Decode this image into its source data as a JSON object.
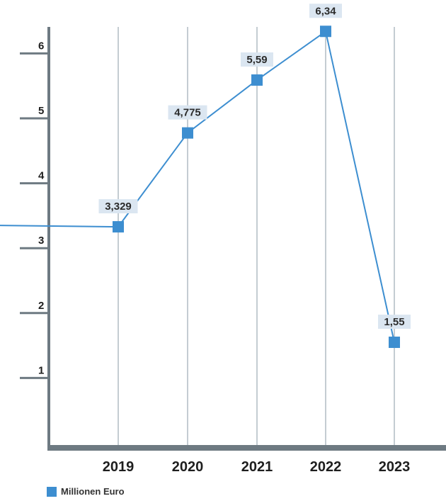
{
  "chart_data": {
    "type": "line",
    "title": "",
    "xlabel": "",
    "ylabel": "",
    "categories": [
      "2019",
      "2020",
      "2021",
      "2022",
      "2023"
    ],
    "series": [
      {
        "name": "Millionen Euro",
        "values": [
          3.329,
          4.775,
          5.59,
          6.34,
          1.55
        ],
        "labels": [
          "3,329",
          "4,775",
          "5,59",
          "6,34",
          "1,55"
        ]
      }
    ],
    "yticks": [
      "1",
      "2",
      "3",
      "4",
      "5",
      "6"
    ],
    "ylim": [
      0,
      6.5
    ],
    "line_enters_from_left_value": 3.35,
    "grid": "vertical",
    "legend": "bottom-left",
    "colors": {
      "series": "#3d8ed0",
      "axis": "#6e7a82",
      "grid": "#c4ccd2",
      "label_bg": "#dbe6f1"
    }
  }
}
